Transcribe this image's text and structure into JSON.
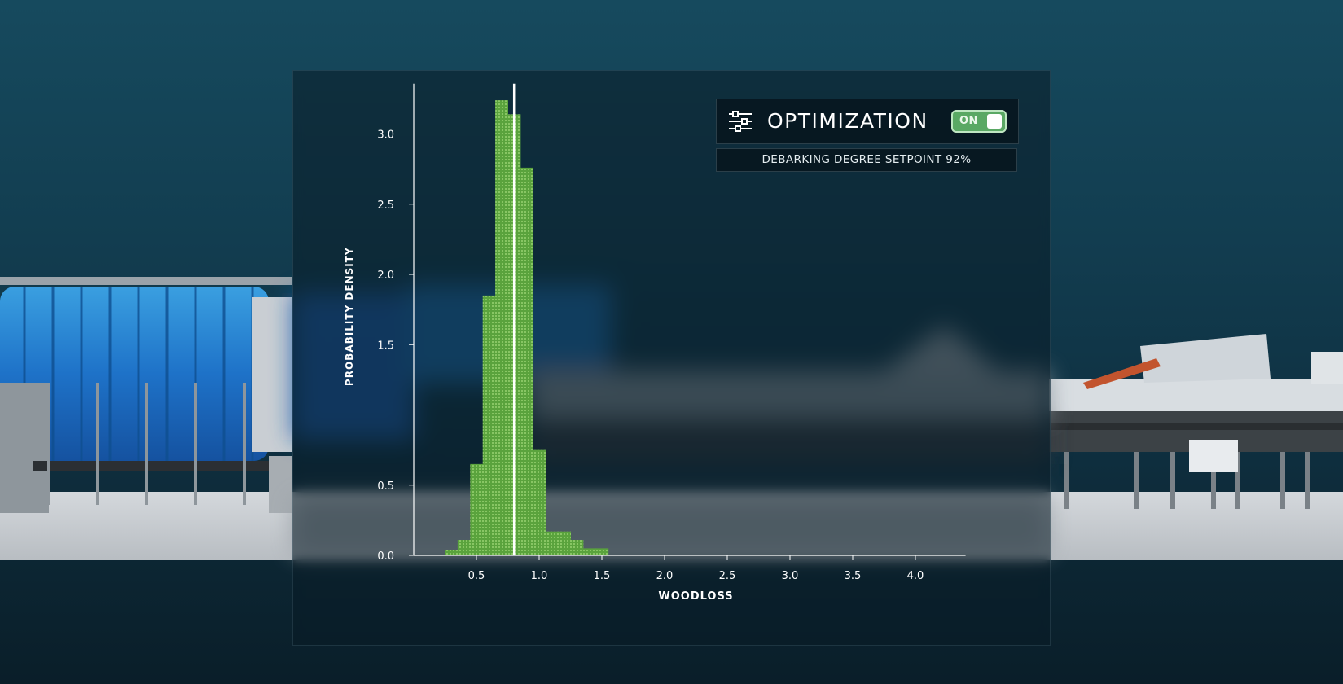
{
  "optimization": {
    "label": "OPTIMIZATION",
    "toggle_text": "ON",
    "toggle_state": "on",
    "icon": "sliders-icon",
    "setpoint_text": "DEBARKING DEGREE SETPOINT 92%"
  },
  "colors": {
    "accent_green": "#6cbf4f",
    "toggle_green": "#5aa864",
    "marker_line": "#ffffff"
  },
  "chart_data": {
    "type": "bar",
    "xlabel": "WOODLOSS",
    "ylabel": "PROBABILITY DENSITY",
    "xlim": [
      0,
      4.4
    ],
    "ylim": [
      0,
      3.3
    ],
    "x_ticks": [
      0.5,
      1.0,
      1.5,
      2.0,
      2.5,
      3.0,
      3.5,
      4.0
    ],
    "x_tick_labels": [
      "0.5",
      "1.0",
      "1.5",
      "2.0",
      "2.5",
      "3.0",
      "3.5",
      "4.0"
    ],
    "y_ticks": [
      0.0,
      0.5,
      1.5,
      2.0,
      2.5,
      3.0
    ],
    "y_tick_labels": [
      "0.0",
      "0.5",
      "1.5",
      "2.0",
      "2.5",
      "3.0"
    ],
    "bins": [
      {
        "x0": 0.25,
        "x1": 0.35,
        "value": 0.04
      },
      {
        "x0": 0.35,
        "x1": 0.45,
        "value": 0.11
      },
      {
        "x0": 0.45,
        "x1": 0.55,
        "value": 0.65
      },
      {
        "x0": 0.55,
        "x1": 0.65,
        "value": 1.85
      },
      {
        "x0": 0.65,
        "x1": 0.75,
        "value": 3.24
      },
      {
        "x0": 0.75,
        "x1": 0.85,
        "value": 3.14
      },
      {
        "x0": 0.85,
        "x1": 0.95,
        "value": 2.76
      },
      {
        "x0": 0.95,
        "x1": 1.05,
        "value": 0.75
      },
      {
        "x0": 1.05,
        "x1": 1.15,
        "value": 0.17
      },
      {
        "x0": 1.15,
        "x1": 1.25,
        "value": 0.17
      },
      {
        "x0": 1.25,
        "x1": 1.35,
        "value": 0.11
      },
      {
        "x0": 1.35,
        "x1": 1.45,
        "value": 0.05
      },
      {
        "x0": 1.45,
        "x1": 1.55,
        "value": 0.05
      }
    ],
    "marker_x": 0.8,
    "grid": false
  }
}
